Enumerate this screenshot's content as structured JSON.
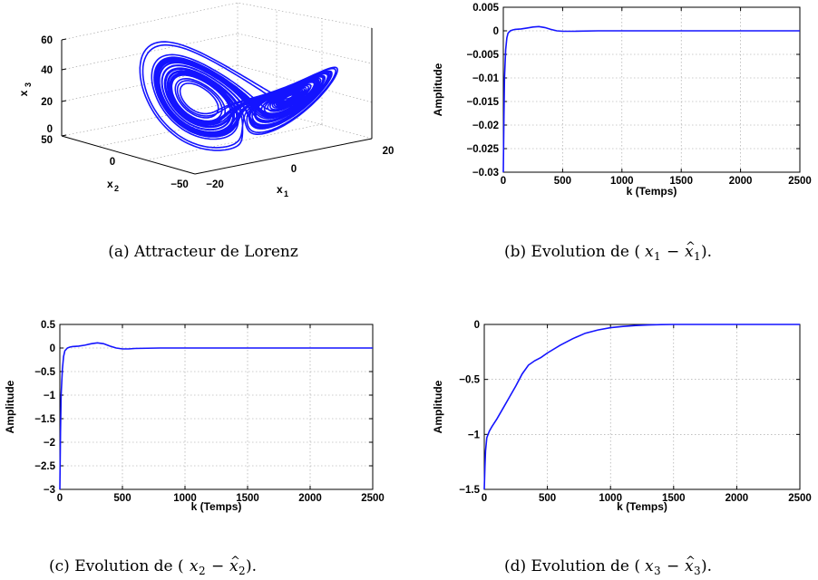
{
  "captions": {
    "a": "(a) Attracteur de Lorenz",
    "b_prefix": "(b) Evolution de (",
    "c_prefix": "(c) Evolution de (",
    "d_prefix": "(d) Evolution de (",
    "suffix": ")."
  },
  "lorenz": {
    "x1_label": "x",
    "x1_sub": "1",
    "x2_label": "x",
    "x2_sub": "2",
    "x3_label": "x",
    "x3_sub": "3",
    "x3_ticks": [
      "60",
      "40",
      "20",
      "0"
    ],
    "x2_ticks": [
      "50",
      "0",
      "−50"
    ],
    "x1_ticks": [
      "−20",
      "0",
      "20"
    ],
    "line_color": "#1414ff"
  },
  "chart_data": [
    {
      "type": "line",
      "title": "",
      "xlabel": "k (Temps)",
      "ylabel": "Amplitude",
      "xlim": [
        0,
        2500
      ],
      "ylim": [
        -0.03,
        0.005
      ],
      "xticks": [
        "0",
        "500",
        "1000",
        "1500",
        "2000",
        "2500"
      ],
      "yticks": [
        "0.005",
        "0",
        "−0.005",
        "−0.01",
        "−0.015",
        "−0.02",
        "−0.025",
        "−0.03"
      ],
      "ytick_values": [
        0.005,
        0,
        -0.005,
        -0.01,
        -0.015,
        -0.02,
        -0.025,
        -0.03
      ],
      "xtick_values": [
        0,
        500,
        1000,
        1500,
        2000,
        2500
      ],
      "grid": true,
      "series": [
        {
          "color": "#1414ff",
          "x": [
            0,
            5,
            10,
            20,
            30,
            40,
            60,
            80,
            100,
            150,
            200,
            250,
            300,
            350,
            400,
            450,
            500,
            600,
            800,
            1000,
            1500,
            2000,
            2500
          ],
          "y": [
            -0.03,
            -0.018,
            -0.01,
            -0.004,
            -0.0015,
            -0.0005,
            0.0,
            0.0002,
            0.0003,
            0.0004,
            0.0006,
            0.0008,
            0.0009,
            0.0007,
            0.0003,
            0.0,
            -0.0001,
            -0.0001,
            0.0,
            0.0,
            0.0,
            0.0,
            0.0
          ]
        }
      ]
    },
    {
      "type": "line",
      "title": "",
      "xlabel": "k (Temps)",
      "ylabel": "Amplitude",
      "xlim": [
        0,
        2500
      ],
      "ylim": [
        -3,
        0.5
      ],
      "xticks": [
        "0",
        "500",
        "1000",
        "1500",
        "2000",
        "2500"
      ],
      "yticks": [
        "0.5",
        "0",
        "−0.5",
        "−1",
        "−1.5",
        "−2",
        "−2.5",
        "−3"
      ],
      "ytick_values": [
        0.5,
        0,
        -0.5,
        -1,
        -1.5,
        -2,
        -2.5,
        -3
      ],
      "xtick_values": [
        0,
        500,
        1000,
        1500,
        2000,
        2500
      ],
      "grid": true,
      "series": [
        {
          "color": "#1414ff",
          "x": [
            0,
            5,
            10,
            20,
            30,
            40,
            60,
            80,
            100,
            150,
            200,
            250,
            300,
            350,
            400,
            450,
            500,
            550,
            600,
            800,
            1000,
            1500,
            2000,
            2500
          ],
          "y": [
            -3.0,
            -1.8,
            -1.0,
            -0.45,
            -0.18,
            -0.06,
            0.0,
            0.02,
            0.03,
            0.04,
            0.06,
            0.09,
            0.11,
            0.09,
            0.04,
            0.0,
            -0.02,
            -0.02,
            -0.01,
            0.0,
            0.0,
            0.0,
            0.0,
            0.0
          ]
        }
      ]
    },
    {
      "type": "line",
      "title": "",
      "xlabel": "k (Temps)",
      "ylabel": "Amplitude",
      "xlim": [
        0,
        2500
      ],
      "ylim": [
        -1.5,
        0
      ],
      "xticks": [
        "0",
        "500",
        "1000",
        "1500",
        "2000",
        "2500"
      ],
      "yticks": [
        "0",
        "−0.5",
        "−1",
        "−1.5"
      ],
      "ytick_values": [
        0,
        -0.5,
        -1,
        -1.5
      ],
      "xtick_values": [
        0,
        500,
        1000,
        1500,
        2000,
        2500
      ],
      "grid": true,
      "series": [
        {
          "color": "#1414ff",
          "x": [
            0,
            5,
            10,
            20,
            40,
            60,
            100,
            150,
            200,
            250,
            300,
            350,
            400,
            450,
            500,
            600,
            700,
            800,
            900,
            1000,
            1100,
            1200,
            1300,
            1400,
            1500,
            2000,
            2500
          ],
          "y": [
            -1.5,
            -1.3,
            -1.15,
            -1.03,
            -0.97,
            -0.93,
            -0.86,
            -0.76,
            -0.66,
            -0.56,
            -0.45,
            -0.37,
            -0.33,
            -0.3,
            -0.26,
            -0.19,
            -0.13,
            -0.08,
            -0.05,
            -0.03,
            -0.018,
            -0.01,
            -0.005,
            -0.002,
            0.0,
            0.0,
            0.0
          ]
        }
      ]
    }
  ]
}
